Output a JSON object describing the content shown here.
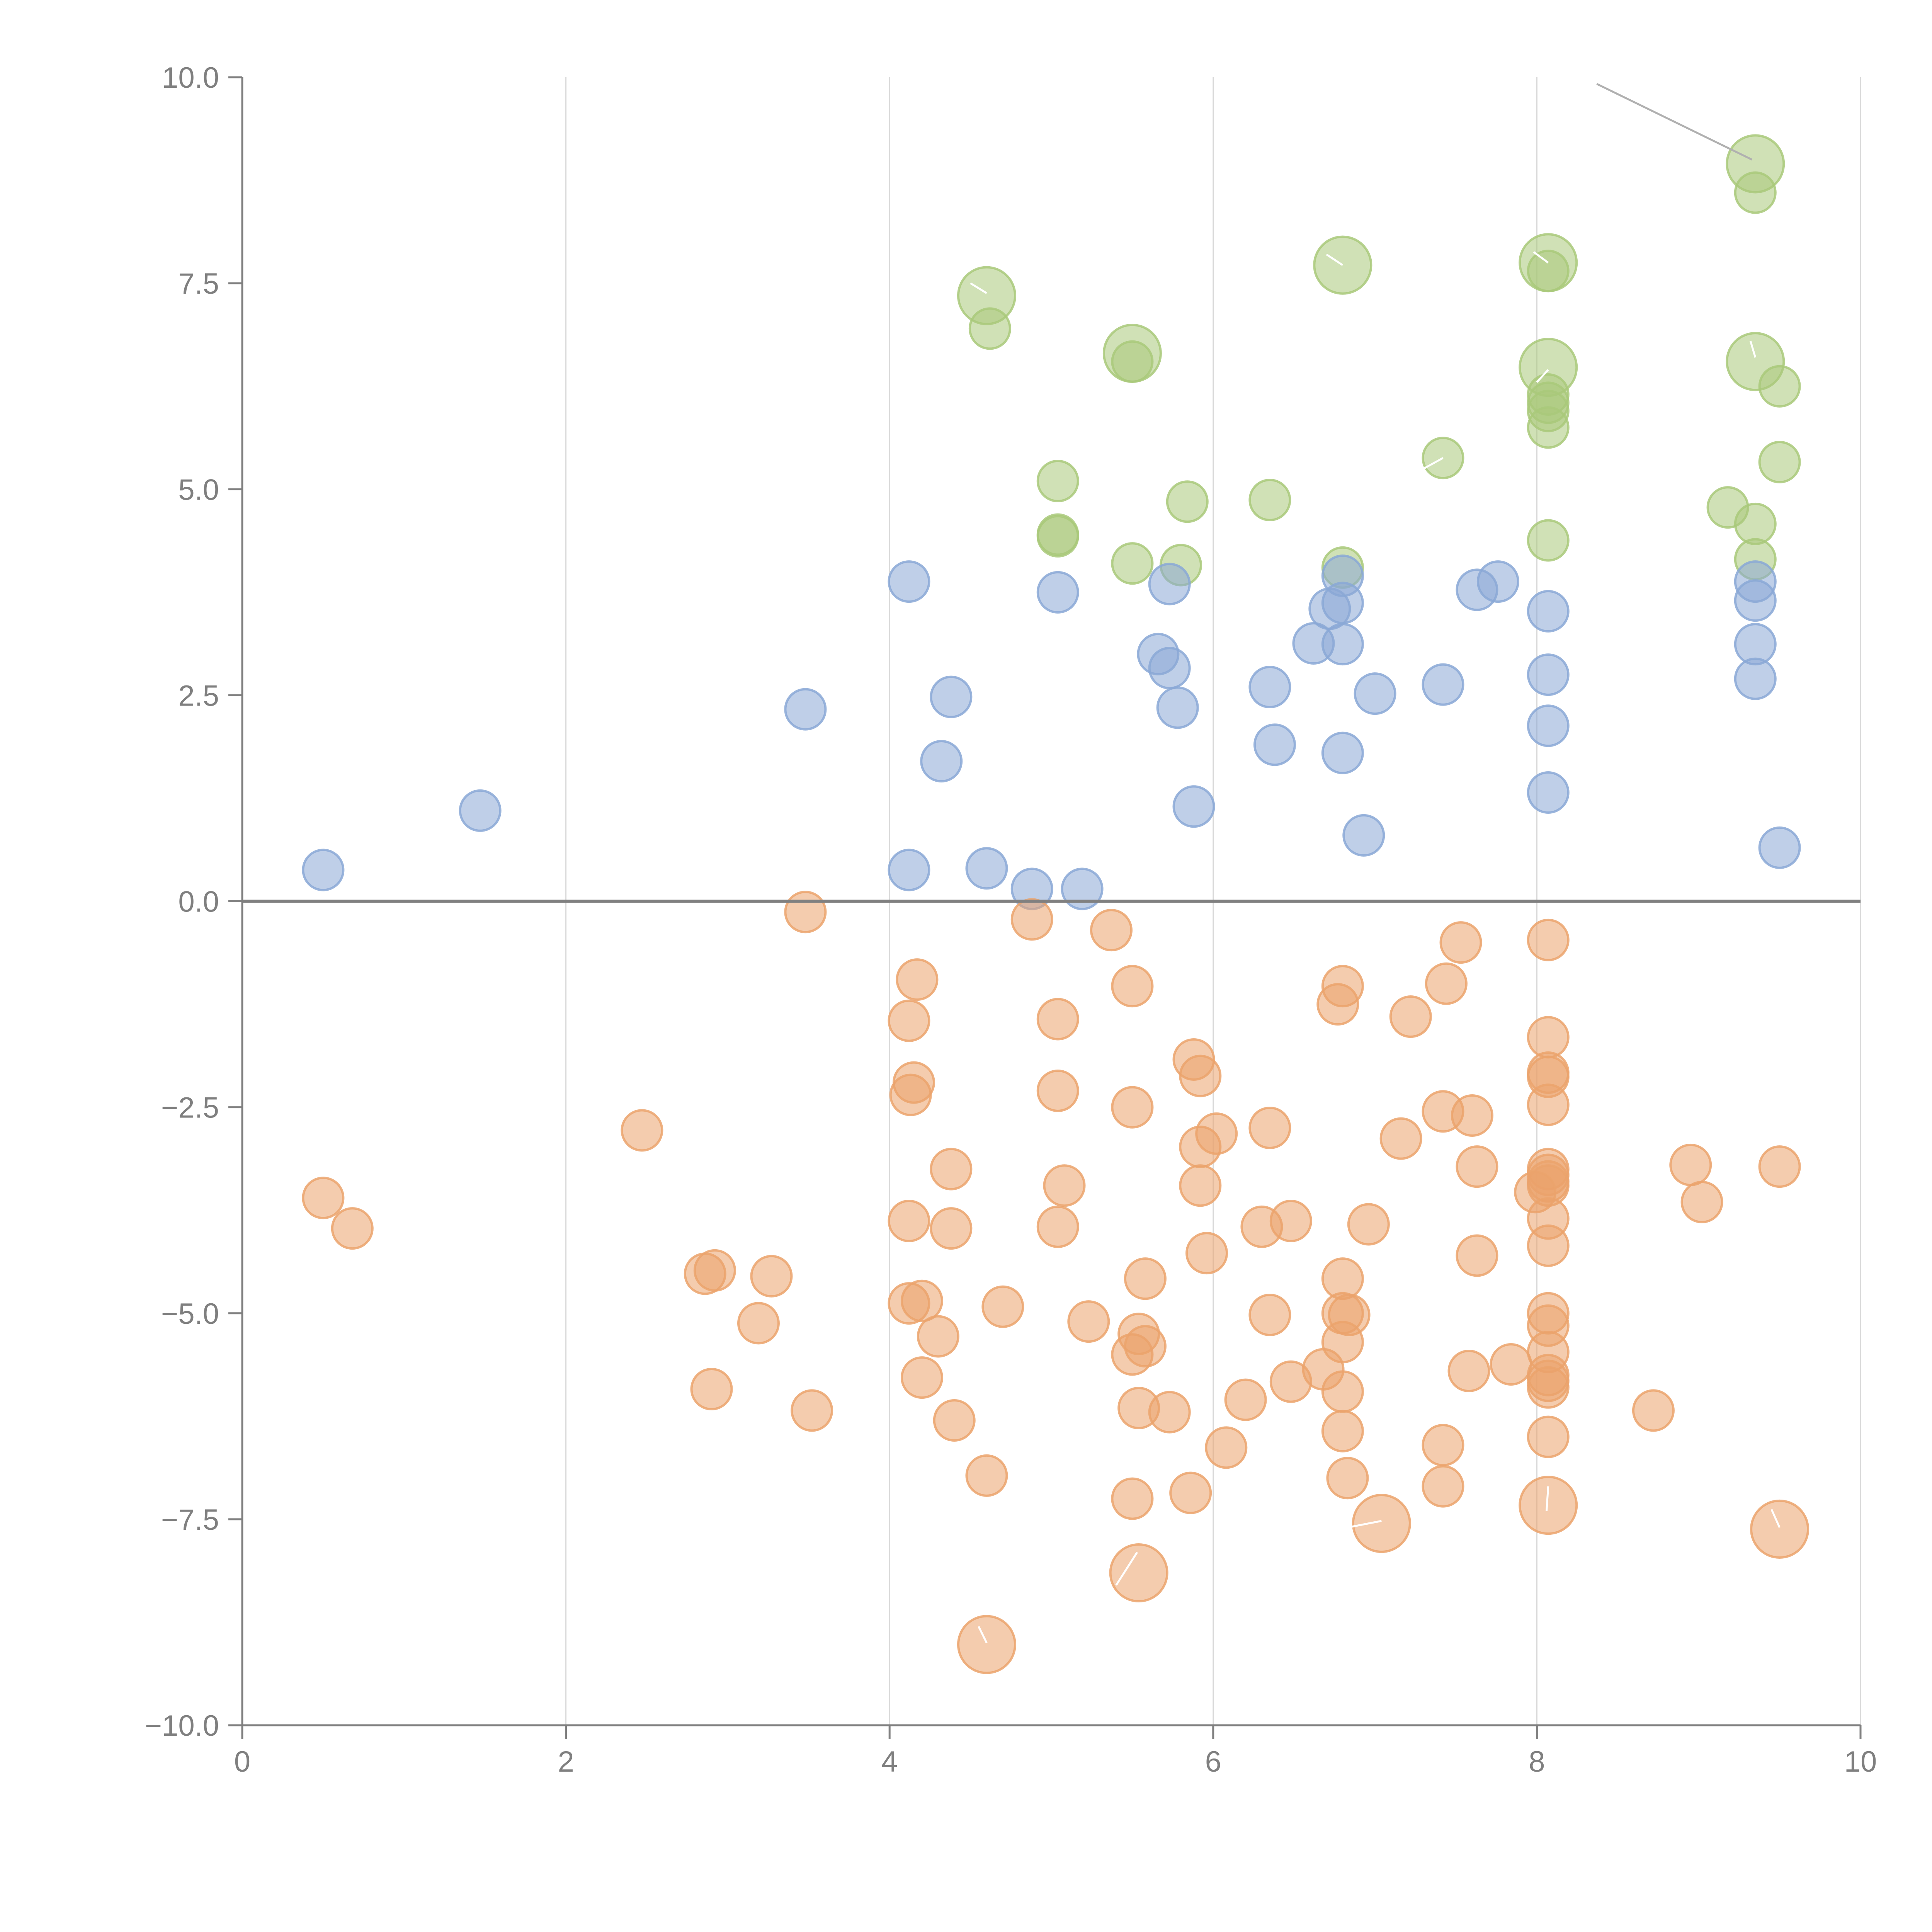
{
  "chart_data": {
    "type": "scatter",
    "title": "",
    "xlabel": "",
    "ylabel": "",
    "xlim": [
      0,
      10
    ],
    "ylim": [
      -10,
      10
    ],
    "grid": "vertical",
    "zero_line": true,
    "x_ticks": [
      "0",
      "2",
      "4",
      "6",
      "8",
      "10"
    ],
    "y_ticks": [
      "10.0",
      "7.5",
      "5.0",
      "2.5",
      "0.0",
      "−2.5",
      "−5.0",
      "−7.5",
      "−10.0"
    ],
    "colors": {
      "green": "#a9c97a",
      "blue": "#8aa8d6",
      "orange": "#eba36c",
      "grid": "#d9d9d9",
      "axis": "#7f7f7f",
      "zero_line": "#808080",
      "leader": "#b0b0b0"
    },
    "series": [
      {
        "color": "green",
        "points": [
          [
            9.35,
            8.95,
            2
          ],
          [
            9.35,
            8.6,
            1
          ],
          [
            4.6,
            7.35,
            2
          ],
          [
            4.62,
            6.95,
            1
          ],
          [
            6.8,
            7.72,
            2
          ],
          [
            8.07,
            7.75,
            2
          ],
          [
            8.07,
            7.65,
            1
          ],
          [
            5.5,
            6.65,
            2
          ],
          [
            5.5,
            6.55,
            1
          ],
          [
            8.07,
            6.48,
            2
          ],
          [
            8.07,
            6.15,
            1
          ],
          [
            8.07,
            6.05,
            1
          ],
          [
            8.07,
            5.95,
            1
          ],
          [
            8.07,
            5.75,
            1
          ],
          [
            9.35,
            6.55,
            2
          ],
          [
            9.5,
            6.25,
            1
          ],
          [
            5.04,
            5.1,
            1
          ],
          [
            7.42,
            5.38,
            1
          ],
          [
            5.84,
            4.85,
            1
          ],
          [
            6.35,
            4.87,
            1
          ],
          [
            9.5,
            5.33,
            1
          ],
          [
            9.18,
            4.78,
            1
          ],
          [
            9.35,
            4.58,
            1
          ],
          [
            9.35,
            4.15,
            1
          ],
          [
            5.04,
            4.45,
            1
          ],
          [
            5.04,
            4.43,
            1
          ],
          [
            5.5,
            4.1,
            1
          ],
          [
            5.8,
            4.08,
            1
          ],
          [
            6.8,
            4.05,
            1
          ],
          [
            8.07,
            4.38,
            1
          ]
        ]
      },
      {
        "color": "blue",
        "points": [
          [
            0.5,
            0.38,
            1
          ],
          [
            1.47,
            1.1,
            1
          ],
          [
            3.48,
            2.33,
            1
          ],
          [
            4.12,
            3.88,
            1
          ],
          [
            4.38,
            2.48,
            1
          ],
          [
            4.32,
            1.7,
            1
          ],
          [
            4.12,
            0.38,
            1
          ],
          [
            4.6,
            0.4,
            1
          ],
          [
            4.88,
            0.15,
            1
          ],
          [
            5.19,
            0.15,
            1
          ],
          [
            5.04,
            3.75,
            1
          ],
          [
            5.66,
            3.0,
            1
          ],
          [
            5.73,
            3.85,
            1
          ],
          [
            5.73,
            2.83,
            1
          ],
          [
            5.78,
            2.35,
            1
          ],
          [
            5.88,
            1.15,
            1
          ],
          [
            6.35,
            2.6,
            1
          ],
          [
            6.38,
            1.9,
            1
          ],
          [
            6.62,
            3.13,
            1
          ],
          [
            6.72,
            3.55,
            1
          ],
          [
            6.8,
            3.95,
            1
          ],
          [
            6.8,
            3.62,
            1
          ],
          [
            6.8,
            3.12,
            1
          ],
          [
            6.8,
            1.8,
            1
          ],
          [
            6.93,
            0.8,
            1
          ],
          [
            7.0,
            2.52,
            1
          ],
          [
            7.42,
            2.63,
            1
          ],
          [
            7.63,
            3.78,
            1
          ],
          [
            7.76,
            3.88,
            1
          ],
          [
            8.07,
            3.52,
            1
          ],
          [
            8.07,
            2.75,
            1
          ],
          [
            8.07,
            2.13,
            1
          ],
          [
            8.07,
            1.32,
            1
          ],
          [
            9.35,
            3.88,
            1
          ],
          [
            9.35,
            3.65,
            1
          ],
          [
            9.35,
            3.12,
            1
          ],
          [
            9.35,
            2.7,
            1
          ],
          [
            9.5,
            0.65,
            1
          ]
        ]
      },
      {
        "color": "orange",
        "points": [
          [
            0.5,
            -3.6,
            1
          ],
          [
            0.68,
            -3.97,
            1
          ],
          [
            2.47,
            -2.78,
            1
          ],
          [
            2.86,
            -4.52,
            1
          ],
          [
            2.92,
            -4.48,
            1
          ],
          [
            2.9,
            -5.92,
            1
          ],
          [
            3.19,
            -5.12,
            1
          ],
          [
            3.27,
            -4.55,
            1
          ],
          [
            3.52,
            -6.18,
            1
          ],
          [
            3.48,
            -0.13,
            1
          ],
          [
            4.12,
            -1.45,
            1
          ],
          [
            4.17,
            -0.95,
            1
          ],
          [
            4.15,
            -2.2,
            1
          ],
          [
            4.13,
            -2.35,
            1
          ],
          [
            4.12,
            -3.88,
            1
          ],
          [
            4.12,
            -4.88,
            1
          ],
          [
            4.2,
            -4.85,
            1
          ],
          [
            4.2,
            -5.78,
            1
          ],
          [
            4.3,
            -5.28,
            1
          ],
          [
            4.38,
            -3.25,
            1
          ],
          [
            4.38,
            -3.97,
            1
          ],
          [
            4.4,
            -6.3,
            1
          ],
          [
            4.6,
            -6.97,
            1
          ],
          [
            4.6,
            -9.02,
            2
          ],
          [
            4.7,
            -4.92,
            1
          ],
          [
            4.88,
            -0.22,
            1
          ],
          [
            5.04,
            -1.43,
            1
          ],
          [
            5.04,
            -2.3,
            1
          ],
          [
            5.08,
            -3.45,
            1
          ],
          [
            5.04,
            -3.95,
            1
          ],
          [
            5.23,
            -5.1,
            1
          ],
          [
            5.37,
            -0.35,
            1
          ],
          [
            5.5,
            -1.03,
            1
          ],
          [
            5.5,
            -2.5,
            1
          ],
          [
            5.5,
            -5.5,
            1
          ],
          [
            5.5,
            -7.25,
            1
          ],
          [
            5.54,
            -5.25,
            1
          ],
          [
            5.58,
            -5.4,
            1
          ],
          [
            5.54,
            -6.15,
            1
          ],
          [
            5.58,
            -4.58,
            1
          ],
          [
            5.54,
            -8.15,
            2
          ],
          [
            5.73,
            -6.2,
            1
          ],
          [
            5.88,
            -1.92,
            1
          ],
          [
            5.92,
            -2.12,
            1
          ],
          [
            5.92,
            -2.98,
            1
          ],
          [
            6.02,
            -2.82,
            1
          ],
          [
            5.92,
            -3.45,
            1
          ],
          [
            5.96,
            -4.27,
            1
          ],
          [
            5.86,
            -7.18,
            1
          ],
          [
            6.08,
            -6.63,
            1
          ],
          [
            6.2,
            -6.05,
            1
          ],
          [
            6.3,
            -3.95,
            1
          ],
          [
            6.35,
            -2.75,
            1
          ],
          [
            6.48,
            -3.88,
            1
          ],
          [
            6.35,
            -5.02,
            1
          ],
          [
            6.48,
            -5.83,
            1
          ],
          [
            6.68,
            -5.68,
            1
          ],
          [
            6.8,
            -1.03,
            1
          ],
          [
            6.77,
            -1.25,
            1
          ],
          [
            6.8,
            -4.58,
            1
          ],
          [
            6.8,
            -5.0,
            1
          ],
          [
            6.84,
            -5.02,
            1
          ],
          [
            6.8,
            -5.35,
            1
          ],
          [
            6.8,
            -5.95,
            1
          ],
          [
            6.8,
            -6.43,
            1
          ],
          [
            6.83,
            -7.0,
            1
          ],
          [
            6.96,
            -3.92,
            1
          ],
          [
            7.04,
            -7.55,
            2
          ],
          [
            7.16,
            -2.88,
            1
          ],
          [
            7.22,
            -1.4,
            1
          ],
          [
            7.42,
            -2.55,
            1
          ],
          [
            7.44,
            -1.0,
            1
          ],
          [
            7.42,
            -6.6,
            1
          ],
          [
            7.42,
            -7.1,
            1
          ],
          [
            7.53,
            -0.5,
            1
          ],
          [
            7.58,
            -5.7,
            1
          ],
          [
            7.6,
            -2.6,
            1
          ],
          [
            7.63,
            -3.22,
            1
          ],
          [
            7.63,
            -4.3,
            1
          ],
          [
            7.84,
            -5.62,
            1
          ],
          [
            8.07,
            -0.47,
            1
          ],
          [
            8.07,
            -1.65,
            1
          ],
          [
            8.07,
            -2.08,
            1
          ],
          [
            8.07,
            -2.13,
            1
          ],
          [
            8.07,
            -2.47,
            1
          ],
          [
            8.07,
            -3.25,
            1
          ],
          [
            8.07,
            -3.32,
            1
          ],
          [
            8.07,
            -3.4,
            1
          ],
          [
            8.07,
            -3.45,
            1
          ],
          [
            7.99,
            -3.53,
            1
          ],
          [
            8.07,
            -3.85,
            1
          ],
          [
            8.07,
            -4.18,
            1
          ],
          [
            8.07,
            -5.0,
            1
          ],
          [
            8.07,
            -5.15,
            1
          ],
          [
            8.07,
            -5.47,
            1
          ],
          [
            8.07,
            -5.75,
            1
          ],
          [
            8.07,
            -5.82,
            1
          ],
          [
            8.07,
            -5.9,
            1
          ],
          [
            8.07,
            -6.5,
            1
          ],
          [
            8.07,
            -7.33,
            2
          ],
          [
            8.72,
            -6.18,
            1
          ],
          [
            8.95,
            -3.2,
            1
          ],
          [
            9.02,
            -3.65,
            1
          ],
          [
            9.5,
            -3.22,
            1
          ],
          [
            9.5,
            -7.62,
            2
          ]
        ]
      }
    ]
  }
}
